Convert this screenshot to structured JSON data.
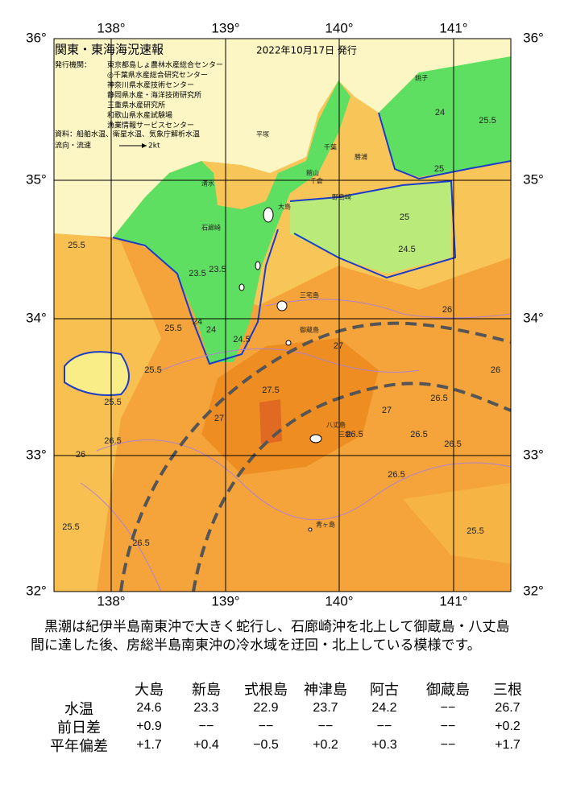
{
  "map": {
    "title": "関東・東海海況速報",
    "date": "2022年10月17日 発行",
    "issuer_label": "発行機関：",
    "issuers": [
      "東京都島しょ農林水産総合センター",
      "◎千葉県水産総合研究センター",
      "神奈川県水産技術センター",
      "静岡県水産・海洋技術研究所",
      "三重県水産研究所",
      "和歌山県水産試験場",
      "漁業情報サービスセンター"
    ],
    "source": "資料：船舶水温、衛星水温、気象庁解析水温",
    "flow_label": "流向・流速",
    "flow_scale": "2kt",
    "longitudes": [
      "138°",
      "139°",
      "140°",
      "141°"
    ],
    "latitudes": [
      "36°",
      "35°",
      "34°",
      "33°",
      "32°"
    ],
    "places": [
      "大島",
      "三宅島",
      "御蔵島",
      "八丈島",
      "三根",
      "青ヶ島",
      "館山",
      "千倉",
      "勝浦",
      "銚子",
      "石廊崎",
      "清水",
      "平塚",
      "千葉",
      "野島崎"
    ],
    "contour_labels": [
      "25.5",
      "25.5",
      "25.5",
      "24",
      "23.5",
      "23.5",
      "24",
      "24.5",
      "25",
      "26",
      "26.5",
      "27",
      "26.5",
      "27.5",
      "26.5",
      "27",
      "25.5",
      "26.5",
      "26",
      "25.5",
      "24.5",
      "25",
      "26",
      "26.5",
      "27",
      "25.5",
      "26.5",
      "26.5",
      "25.5",
      "24"
    ]
  },
  "description": "黒潮は紀伊半島南東沖で大きく蛇行し、石廊崎沖を北上して御蔵島・八丈島間に達した後、房総半島南東沖の冷水域を迂回・北上している模様です。",
  "table": {
    "columns": [
      "大島",
      "新島",
      "式根島",
      "神津島",
      "阿古",
      "御蔵島",
      "三根"
    ],
    "rows": [
      {
        "label": "水温",
        "cells": [
          "24.6",
          "23.3",
          "22.9",
          "23.7",
          "24.2",
          "−−",
          "26.7"
        ]
      },
      {
        "label": "前日差",
        "cells": [
          "+0.9",
          "−−",
          "−−",
          "−−",
          "−−",
          "−−",
          "+0.2"
        ]
      },
      {
        "label": "平年偏差",
        "cells": [
          "+1.7",
          "+0.4",
          "−0.5",
          "+0.2",
          "+0.3",
          "−−",
          "+1.7"
        ]
      }
    ]
  }
}
